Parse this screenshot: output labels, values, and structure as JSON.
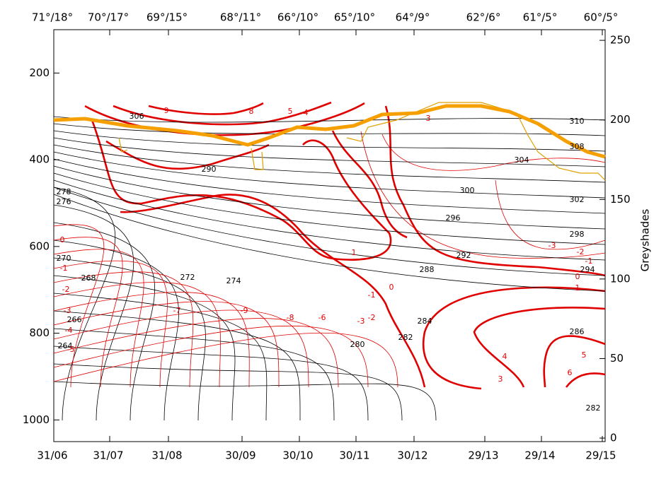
{
  "chart_data": {
    "type": "cross-section",
    "ylim": [
      100,
      1050
    ],
    "yticks": [
      200,
      400,
      600,
      800,
      1000
    ],
    "y_inverted": true,
    "y2lim": [
      -2.2,
      256.7
    ],
    "y2ticks": [
      0,
      50,
      100,
      150,
      200,
      250
    ],
    "y2label": "Greyshades",
    "x_bottom_labels": [
      "31/06",
      "31/07",
      "31/08",
      "30/09",
      "30/10",
      "30/11",
      "30/12",
      "29/13",
      "29/14",
      "29/15"
    ],
    "x_top_labels": [
      "71°/18°",
      "70°/17°",
      "69°/15°",
      "68°/11°",
      "66°/10°",
      "65°/10°",
      "64°/9°",
      "62°/6°",
      "61°/5°",
      "60°/5°"
    ],
    "contour_labels_black": [
      310,
      308,
      306,
      304,
      302,
      300,
      298,
      296,
      294,
      292,
      290,
      288,
      286,
      284,
      282,
      280,
      278,
      276,
      274,
      272,
      270,
      268,
      266,
      264,
      282
    ],
    "contour_labels_red": [
      9,
      8,
      5,
      4,
      3,
      1,
      0,
      -1,
      -2,
      -3,
      -6,
      -8,
      -9,
      -7,
      0,
      1,
      -1,
      -2,
      -3,
      5,
      6,
      4,
      3,
      0,
      -1,
      -2,
      -3,
      -4,
      -5
    ]
  }
}
